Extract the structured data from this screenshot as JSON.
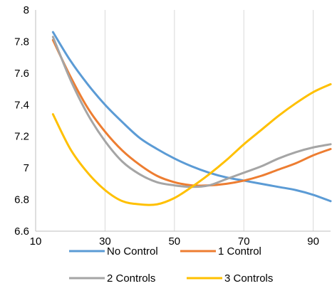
{
  "chart_data": {
    "type": "line",
    "title": "",
    "xlabel": "",
    "ylabel": "",
    "xlim": [
      10,
      95
    ],
    "ylim": [
      6.6,
      8
    ],
    "x_ticks": [
      10,
      30,
      50,
      70,
      90
    ],
    "x_tick_labels": [
      "10",
      "30",
      "50",
      "70",
      "90"
    ],
    "y_ticks": [
      6.6,
      6.8,
      7,
      7.2,
      7.4,
      7.6,
      7.8,
      8
    ],
    "y_tick_labels": [
      "6.6",
      "6.8",
      "7",
      "7.2",
      "7.4",
      "7.6",
      "7.8",
      "8"
    ],
    "grid": "vertical",
    "legend_position": "bottom",
    "x": [
      15,
      20,
      25,
      30,
      35,
      40,
      45,
      50,
      55,
      60,
      65,
      70,
      75,
      80,
      85,
      90,
      95
    ],
    "series": [
      {
        "name": "No Control",
        "color": "#5B9BD5",
        "values": [
          7.86,
          7.68,
          7.53,
          7.4,
          7.29,
          7.19,
          7.12,
          7.06,
          7.01,
          6.97,
          6.94,
          6.92,
          6.9,
          6.88,
          6.86,
          6.83,
          6.79
        ]
      },
      {
        "name": "1 Control",
        "color": "#ED7D31",
        "values": [
          7.81,
          7.58,
          7.38,
          7.23,
          7.11,
          7.02,
          6.95,
          6.91,
          6.89,
          6.89,
          6.9,
          6.92,
          6.95,
          6.99,
          7.03,
          7.08,
          7.12
        ]
      },
      {
        "name": "2 Controls",
        "color": "#A5A5A5",
        "values": [
          7.83,
          7.56,
          7.34,
          7.17,
          7.04,
          6.96,
          6.91,
          6.89,
          6.88,
          6.89,
          6.93,
          6.97,
          7.01,
          7.06,
          7.1,
          7.13,
          7.15
        ]
      },
      {
        "name": "3 Controls",
        "color": "#FFC000",
        "values": [
          7.34,
          7.12,
          6.97,
          6.86,
          6.79,
          6.77,
          6.77,
          6.81,
          6.88,
          6.96,
          7.05,
          7.15,
          7.24,
          7.33,
          7.41,
          7.48,
          7.53
        ]
      }
    ]
  }
}
